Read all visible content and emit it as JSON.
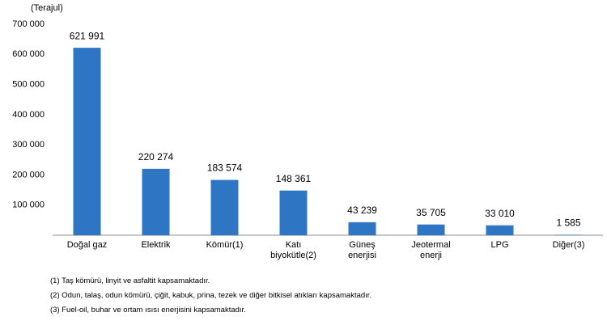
{
  "chart_data": {
    "type": "bar",
    "unit_label": "(Terajul)",
    "categories": [
      "Doğal gaz",
      "Elektrik",
      "Kömür(1)",
      "Katı biyokütle(2)",
      "Güneş enerjisi",
      "Jeotermal enerji",
      "LPG",
      "Diğer(3)"
    ],
    "values": [
      621991,
      220274,
      183574,
      148361,
      43239,
      35705,
      33010,
      1585
    ],
    "value_labels": [
      "621 991",
      "220 274",
      "183 574",
      "148 361",
      "43 239",
      "35 705",
      "33 010",
      "1 585"
    ],
    "color": "#2e75c4",
    "ylim": [
      0,
      700000
    ],
    "yticks": [
      {
        "value": 100000,
        "label": "100 000"
      },
      {
        "value": 200000,
        "label": "200 000"
      },
      {
        "value": 300000,
        "label": "300 000"
      },
      {
        "value": 400000,
        "label": "400 000"
      },
      {
        "value": 500000,
        "label": "500 000"
      },
      {
        "value": 600000,
        "label": "600 000"
      },
      {
        "value": 700000,
        "label": "700 000"
      }
    ],
    "footnotes": [
      "(1) Taş kömürü, linyit ve asfaltit kapsamaktadır.",
      "(2) Odun, talaş, odun kömürü, çiğit, kabuk, prina, tezek ve diğer bitkisel atıkları kapsamaktadır.",
      "(3) Fuel-oil, buhar ve ortam ısısı enerjisini kapsamaktadır."
    ]
  }
}
